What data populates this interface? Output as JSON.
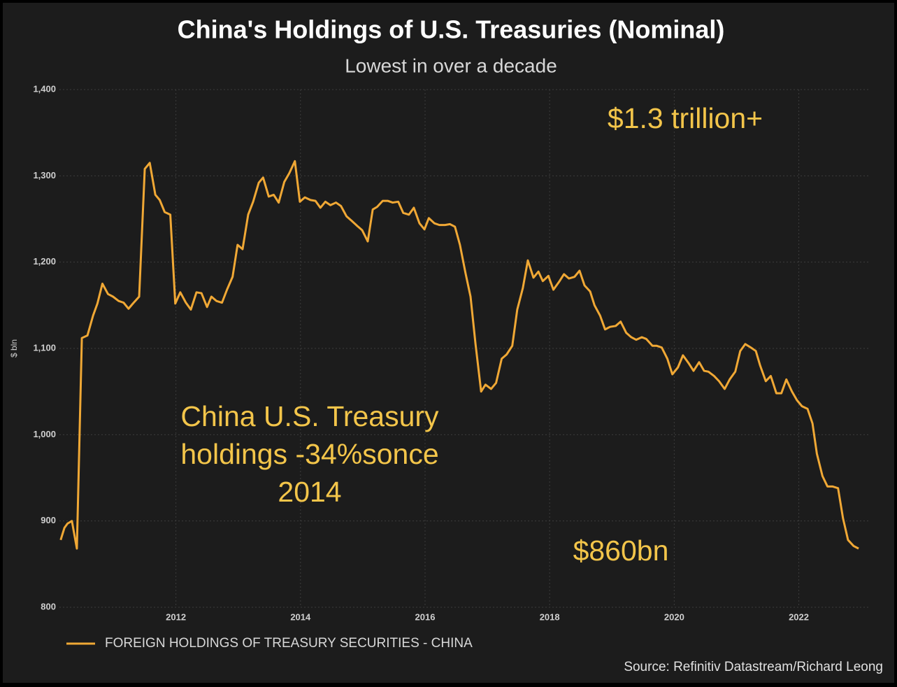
{
  "chart_data": {
    "type": "line",
    "title": "China's Holdings of U.S. Treasuries (Nominal)",
    "subtitle": "Lowest in over a decade",
    "y_label": "$ bln",
    "source": "Source: Refinitiv Datastream/Richard Leong",
    "annotations": [
      {
        "lines": [
          "$1.3 trillion+"
        ]
      },
      {
        "lines": [
          "China U.S. Treasury",
          "holdings -34%sonce",
          "2014"
        ]
      },
      {
        "lines": [
          "$860bn"
        ]
      }
    ],
    "xlim": [
      2010.13,
      2023.15
    ],
    "xticks": [
      2012,
      2014,
      2016,
      2018,
      2020,
      2022
    ],
    "ylim": [
      800,
      1400
    ],
    "yticks": [
      800,
      900,
      {
        "value": 1000,
        "label": "1,000"
      },
      {
        "value": 1100,
        "label": "1,100"
      },
      {
        "value": 1200,
        "label": "1,200"
      },
      {
        "value": 1300,
        "label": "1,300"
      },
      {
        "value": 1400,
        "label": "1,400"
      }
    ],
    "grid": true,
    "legend": "bottom-left",
    "x": [
      2010.15,
      2010.21,
      2010.26,
      2010.33,
      2010.41,
      2010.49,
      2010.58,
      2010.67,
      2010.74,
      2010.82,
      2010.91,
      2010.99,
      2011.08,
      2011.16,
      2011.24,
      2011.31,
      2011.41,
      2011.5,
      2011.58,
      2011.67,
      2011.74,
      2011.82,
      2011.91,
      2011.99,
      2012.07,
      2012.16,
      2012.24,
      2012.33,
      2012.41,
      2012.5,
      2012.57,
      2012.65,
      2012.74,
      2012.82,
      2012.91,
      2012.99,
      2013.07,
      2013.16,
      2013.24,
      2013.33,
      2013.4,
      2013.49,
      2013.57,
      2013.65,
      2013.74,
      2013.82,
      2013.91,
      2013.99,
      2014.07,
      2014.16,
      2014.24,
      2014.32,
      2014.4,
      2014.48,
      2014.57,
      2014.65,
      2014.74,
      2014.82,
      2014.91,
      2014.99,
      2015.08,
      2015.16,
      2015.23,
      2015.32,
      2015.4,
      2015.48,
      2015.57,
      2015.65,
      2015.74,
      2015.82,
      2015.91,
      2015.99,
      2016.06,
      2016.15,
      2016.23,
      2016.32,
      2016.4,
      2016.48,
      2016.56,
      2016.65,
      2016.73,
      2016.81,
      2016.9,
      2016.97,
      2017.06,
      2017.14,
      2017.23,
      2017.31,
      2017.4,
      2017.48,
      2017.57,
      2017.65,
      2017.74,
      2017.82,
      2017.89,
      2017.98,
      2018.06,
      2018.15,
      2018.23,
      2018.31,
      2018.4,
      2018.48,
      2018.56,
      2018.65,
      2018.72,
      2018.81,
      2018.89,
      2018.97,
      2019.06,
      2019.14,
      2019.23,
      2019.31,
      2019.39,
      2019.48,
      2019.55,
      2019.65,
      2019.72,
      2019.8,
      2019.89,
      2019.97,
      2020.06,
      2020.14,
      2020.23,
      2020.31,
      2020.4,
      2020.48,
      2020.55,
      2020.64,
      2020.72,
      2020.81,
      2020.89,
      2020.98,
      2021.06,
      2021.14,
      2021.23,
      2021.31,
      2021.38,
      2021.47,
      2021.55,
      2021.64,
      2021.72,
      2021.8,
      2021.89,
      2021.97,
      2022.05,
      2022.14,
      2022.22,
      2022.29,
      2022.38,
      2022.46,
      2022.54,
      2022.63,
      2022.71,
      2022.79,
      2022.88,
      2022.96
    ],
    "series": [
      {
        "name": "FOREIGN HOLDINGS OF TREASURY SECURITIES - CHINA",
        "color": "#f0a835",
        "values": [
          878,
          892,
          897,
          900,
          868,
          1112,
          1115,
          1138,
          1152,
          1175,
          1163,
          1160,
          1155,
          1153,
          1146,
          1152,
          1160,
          1308,
          1315,
          1278,
          1272,
          1258,
          1255,
          1152,
          1165,
          1153,
          1145,
          1165,
          1164,
          1148,
          1160,
          1155,
          1153,
          1168,
          1183,
          1220,
          1215,
          1255,
          1270,
          1292,
          1298,
          1276,
          1278,
          1269,
          1293,
          1303,
          1317,
          1270,
          1275,
          1272,
          1271,
          1263,
          1270,
          1266,
          1269,
          1265,
          1253,
          1248,
          1242,
          1237,
          1224,
          1261,
          1264,
          1271,
          1271,
          1269,
          1270,
          1257,
          1255,
          1263,
          1245,
          1238,
          1251,
          1245,
          1243,
          1243,
          1244,
          1241,
          1220,
          1187,
          1160,
          1105,
          1050,
          1058,
          1053,
          1060,
          1088,
          1093,
          1103,
          1145,
          1170,
          1202,
          1182,
          1189,
          1178,
          1184,
          1168,
          1177,
          1186,
          1181,
          1183,
          1190,
          1173,
          1166,
          1150,
          1138,
          1122,
          1125,
          1126,
          1131,
          1118,
          1113,
          1110,
          1113,
          1111,
          1103,
          1103,
          1101,
          1088,
          1070,
          1078,
          1092,
          1083,
          1074,
          1084,
          1074,
          1073,
          1068,
          1062,
          1053,
          1064,
          1073,
          1097,
          1105,
          1101,
          1097,
          1080,
          1062,
          1068,
          1048,
          1048,
          1064,
          1050,
          1040,
          1033,
          1030,
          1013,
          978,
          952,
          940,
          940,
          938,
          903,
          878,
          871,
          868
        ]
      }
    ]
  }
}
